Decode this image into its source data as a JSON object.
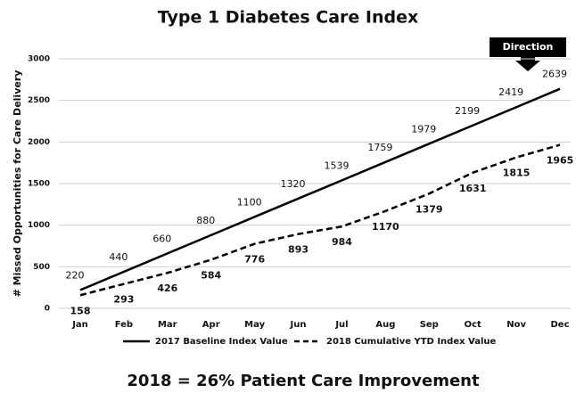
{
  "chart_data": {
    "type": "line",
    "title": "Type 1 Diabetes Care Index",
    "ylabel": "# Missed Opportunities for Care Delivery",
    "categories": [
      "Jan",
      "Feb",
      "Mar",
      "Apr",
      "May",
      "Jun",
      "Jul",
      "Aug",
      "Sep",
      "Oct",
      "Nov",
      "Dec"
    ],
    "series": [
      {
        "name": "2017 Baseline Index Value",
        "color": "#000000",
        "line_style": "solid",
        "values": [
          220,
          440,
          660,
          880,
          1100,
          1320,
          1539,
          1759,
          1979,
          2199,
          2419,
          2639
        ]
      },
      {
        "name": "2018 Cumulative YTD Index Value",
        "color": "#000000",
        "line_style": "dashed",
        "values": [
          158,
          293,
          426,
          584,
          776,
          893,
          984,
          1170,
          1379,
          1631,
          1815,
          1965
        ]
      }
    ],
    "ylim": [
      0,
      3000
    ],
    "yticks": [
      0,
      500,
      1000,
      1500,
      2000,
      2500,
      3000
    ],
    "grid": true,
    "legend": "bottom",
    "annotation": "Direction",
    "footnote": "2018 = 26% Patient Care Improvement"
  }
}
